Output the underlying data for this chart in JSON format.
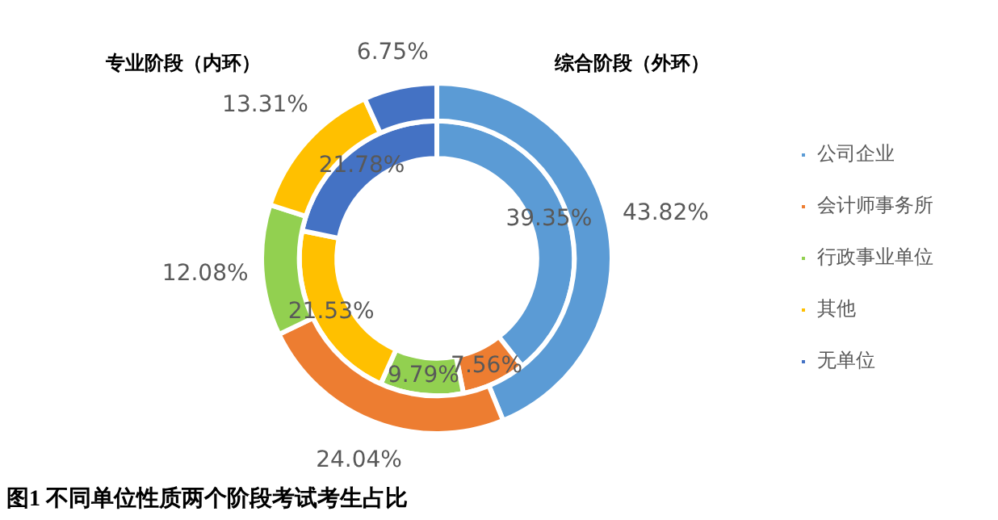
{
  "chart_data": {
    "type": "donut",
    "categories": [
      "公司企业",
      "会计师事务所",
      "行政事业单位",
      "其他",
      "无单位"
    ],
    "colors": [
      "#5b9bd5",
      "#ed7d31",
      "#92d050",
      "#ffc000",
      "#4472c4"
    ],
    "series": [
      {
        "values": [
          43.82,
          24.04,
          12.08,
          13.31,
          6.75
        ],
        "value_labels": [
          "43.82%",
          "24.04%",
          "12.08%",
          "13.31%",
          "6.75%"
        ]
      },
      {
        "values": [
          39.35,
          7.56,
          9.79,
          21.53,
          21.78
        ],
        "value_labels": [
          "39.35%",
          "7.56%",
          "9.79%",
          "21.53%",
          "21.78%"
        ]
      }
    ],
    "legend": "right",
    "annotations": [
      "专业阶段（内环）",
      "综合阶段（外环）",
      "图1 不同单位性质两个阶段考试考生占比"
    ]
  }
}
